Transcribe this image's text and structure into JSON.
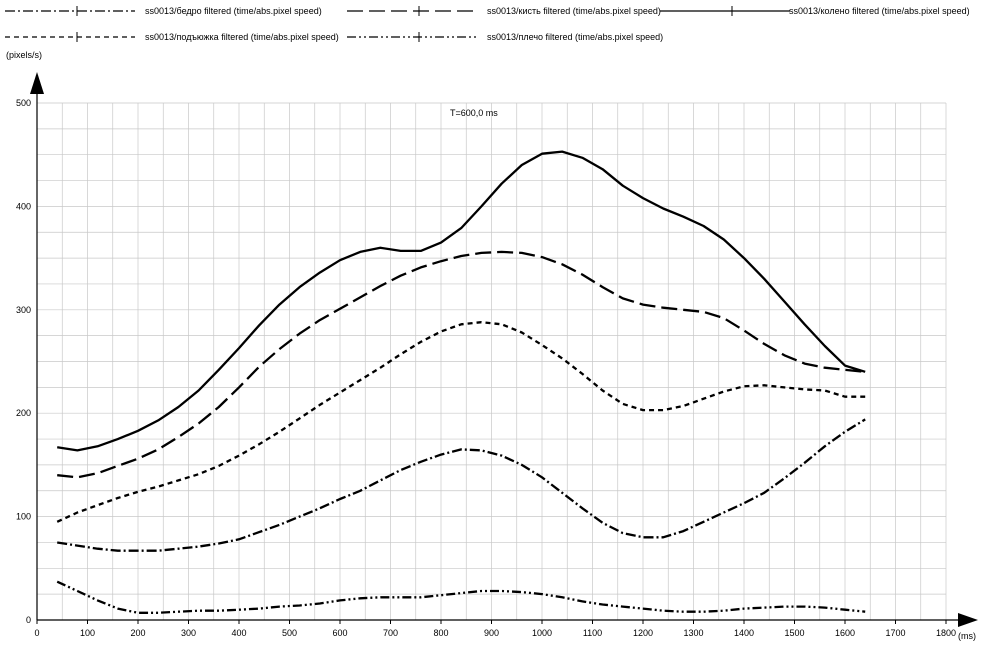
{
  "chart_data": {
    "type": "line",
    "y_unit_label": "(pixels/s)",
    "x_unit_label": "(ms)",
    "annotation": "T=600,0 ms",
    "xlim": [
      0,
      1800
    ],
    "ylim": [
      0,
      500
    ],
    "x_ticks": [
      0,
      100,
      200,
      300,
      400,
      500,
      600,
      700,
      800,
      900,
      1000,
      1100,
      1200,
      1300,
      1400,
      1500,
      1600,
      1700,
      1800
    ],
    "y_ticks": [
      0,
      100,
      200,
      300,
      400,
      500
    ],
    "grid": true,
    "legend_position": "top",
    "series": [
      {
        "name": "ss0013/бедро filtered (time/abs.pixel speed)",
        "style": "dashdot",
        "points": [
          [
            40,
            75
          ],
          [
            80,
            72
          ],
          [
            120,
            69
          ],
          [
            160,
            67
          ],
          [
            200,
            67
          ],
          [
            240,
            67
          ],
          [
            280,
            69
          ],
          [
            320,
            71
          ],
          [
            360,
            74
          ],
          [
            400,
            78
          ],
          [
            440,
            85
          ],
          [
            480,
            92
          ],
          [
            520,
            100
          ],
          [
            560,
            108
          ],
          [
            600,
            117
          ],
          [
            640,
            125
          ],
          [
            680,
            135
          ],
          [
            720,
            145
          ],
          [
            760,
            153
          ],
          [
            800,
            160
          ],
          [
            840,
            165
          ],
          [
            880,
            164
          ],
          [
            920,
            159
          ],
          [
            960,
            150
          ],
          [
            1000,
            138
          ],
          [
            1040,
            123
          ],
          [
            1080,
            108
          ],
          [
            1120,
            94
          ],
          [
            1160,
            84
          ],
          [
            1200,
            80
          ],
          [
            1240,
            80
          ],
          [
            1280,
            86
          ],
          [
            1320,
            95
          ],
          [
            1360,
            104
          ],
          [
            1400,
            113
          ],
          [
            1440,
            123
          ],
          [
            1480,
            137
          ],
          [
            1520,
            152
          ],
          [
            1560,
            168
          ],
          [
            1600,
            182
          ],
          [
            1640,
            194
          ]
        ]
      },
      {
        "name": "ss0013/кисть filtered (time/abs.pixel speed)",
        "style": "longdash",
        "points": [
          [
            40,
            140
          ],
          [
            80,
            138
          ],
          [
            120,
            142
          ],
          [
            160,
            149
          ],
          [
            200,
            156
          ],
          [
            240,
            165
          ],
          [
            280,
            177
          ],
          [
            320,
            190
          ],
          [
            360,
            206
          ],
          [
            400,
            225
          ],
          [
            440,
            245
          ],
          [
            480,
            262
          ],
          [
            520,
            277
          ],
          [
            560,
            290
          ],
          [
            600,
            301
          ],
          [
            640,
            312
          ],
          [
            680,
            323
          ],
          [
            720,
            333
          ],
          [
            760,
            341
          ],
          [
            800,
            347
          ],
          [
            840,
            352
          ],
          [
            880,
            355
          ],
          [
            920,
            356
          ],
          [
            960,
            355
          ],
          [
            1000,
            351
          ],
          [
            1040,
            344
          ],
          [
            1080,
            334
          ],
          [
            1120,
            322
          ],
          [
            1160,
            311
          ],
          [
            1200,
            305
          ],
          [
            1240,
            302
          ],
          [
            1280,
            300
          ],
          [
            1320,
            298
          ],
          [
            1360,
            292
          ],
          [
            1400,
            280
          ],
          [
            1440,
            267
          ],
          [
            1480,
            256
          ],
          [
            1520,
            248
          ],
          [
            1560,
            244
          ],
          [
            1600,
            242
          ],
          [
            1640,
            240
          ]
        ]
      },
      {
        "name": "ss0013/колено filtered (time/abs.pixel speed)",
        "style": "solid",
        "points": [
          [
            40,
            167
          ],
          [
            80,
            164
          ],
          [
            120,
            168
          ],
          [
            160,
            175
          ],
          [
            200,
            183
          ],
          [
            240,
            193
          ],
          [
            280,
            206
          ],
          [
            320,
            222
          ],
          [
            360,
            242
          ],
          [
            400,
            263
          ],
          [
            440,
            285
          ],
          [
            480,
            305
          ],
          [
            520,
            322
          ],
          [
            560,
            336
          ],
          [
            600,
            348
          ],
          [
            640,
            356
          ],
          [
            680,
            360
          ],
          [
            720,
            357
          ],
          [
            760,
            357
          ],
          [
            800,
            365
          ],
          [
            840,
            379
          ],
          [
            880,
            400
          ],
          [
            920,
            422
          ],
          [
            960,
            440
          ],
          [
            1000,
            451
          ],
          [
            1040,
            453
          ],
          [
            1080,
            447
          ],
          [
            1120,
            436
          ],
          [
            1160,
            420
          ],
          [
            1200,
            408
          ],
          [
            1240,
            398
          ],
          [
            1280,
            390
          ],
          [
            1320,
            381
          ],
          [
            1360,
            368
          ],
          [
            1400,
            350
          ],
          [
            1440,
            330
          ],
          [
            1480,
            308
          ],
          [
            1520,
            286
          ],
          [
            1560,
            265
          ],
          [
            1600,
            246
          ],
          [
            1640,
            240
          ]
        ]
      },
      {
        "name": "ss0013/подъюжка filtered (time/abs.pixel speed)",
        "style": "dashed",
        "points": [
          [
            40,
            95
          ],
          [
            80,
            104
          ],
          [
            120,
            111
          ],
          [
            160,
            118
          ],
          [
            200,
            124
          ],
          [
            240,
            129
          ],
          [
            280,
            135
          ],
          [
            320,
            141
          ],
          [
            360,
            149
          ],
          [
            400,
            159
          ],
          [
            440,
            170
          ],
          [
            480,
            182
          ],
          [
            520,
            195
          ],
          [
            560,
            208
          ],
          [
            600,
            220
          ],
          [
            640,
            232
          ],
          [
            680,
            244
          ],
          [
            720,
            257
          ],
          [
            760,
            269
          ],
          [
            800,
            279
          ],
          [
            840,
            286
          ],
          [
            880,
            288
          ],
          [
            920,
            286
          ],
          [
            960,
            278
          ],
          [
            1000,
            266
          ],
          [
            1040,
            253
          ],
          [
            1080,
            238
          ],
          [
            1120,
            222
          ],
          [
            1160,
            209
          ],
          [
            1200,
            203
          ],
          [
            1240,
            203
          ],
          [
            1280,
            207
          ],
          [
            1320,
            214
          ],
          [
            1360,
            221
          ],
          [
            1400,
            226
          ],
          [
            1440,
            227
          ],
          [
            1480,
            225
          ],
          [
            1520,
            223
          ],
          [
            1560,
            222
          ],
          [
            1600,
            216
          ],
          [
            1640,
            216
          ]
        ]
      },
      {
        "name": "ss0013/плечо filtered (time/abs.pixel speed)",
        "style": "dotdash",
        "points": [
          [
            40,
            37
          ],
          [
            80,
            28
          ],
          [
            120,
            19
          ],
          [
            160,
            11
          ],
          [
            200,
            7
          ],
          [
            240,
            7
          ],
          [
            280,
            8
          ],
          [
            320,
            9
          ],
          [
            360,
            9
          ],
          [
            400,
            10
          ],
          [
            440,
            11
          ],
          [
            480,
            13
          ],
          [
            520,
            14
          ],
          [
            560,
            16
          ],
          [
            600,
            19
          ],
          [
            640,
            21
          ],
          [
            680,
            22
          ],
          [
            720,
            22
          ],
          [
            760,
            22
          ],
          [
            800,
            24
          ],
          [
            840,
            26
          ],
          [
            880,
            28
          ],
          [
            920,
            28
          ],
          [
            960,
            27
          ],
          [
            1000,
            25
          ],
          [
            1040,
            22
          ],
          [
            1080,
            18
          ],
          [
            1120,
            15
          ],
          [
            1160,
            13
          ],
          [
            1200,
            11
          ],
          [
            1240,
            9
          ],
          [
            1280,
            8
          ],
          [
            1320,
            8
          ],
          [
            1360,
            9
          ],
          [
            1400,
            11
          ],
          [
            1440,
            12
          ],
          [
            1480,
            13
          ],
          [
            1520,
            13
          ],
          [
            1560,
            12
          ],
          [
            1600,
            10
          ],
          [
            1640,
            8
          ]
        ]
      }
    ]
  }
}
